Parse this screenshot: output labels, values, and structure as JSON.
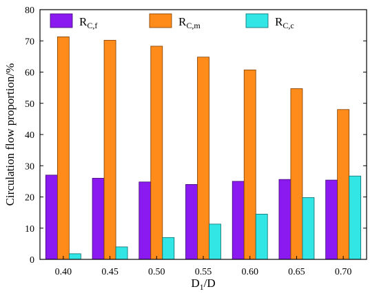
{
  "chart_data": {
    "type": "bar",
    "categories": [
      "0.40",
      "0.45",
      "0.50",
      "0.55",
      "0.60",
      "0.65",
      "0.70"
    ],
    "xlabel": {
      "main": "D",
      "sub": "1",
      "rest": "/D"
    },
    "ylabel": "Circulation flow proportion/%",
    "ylim": [
      0,
      80
    ],
    "yticks": [
      0,
      10,
      20,
      30,
      40,
      50,
      60,
      70,
      80
    ],
    "grid": false,
    "legend_position": "top",
    "series": [
      {
        "name": "R",
        "sub": "C,f",
        "color": "#8B1AF0",
        "edge": "#3a0a6e",
        "values": [
          27.0,
          26.0,
          24.8,
          24.0,
          25.0,
          25.6,
          25.4
        ]
      },
      {
        "name": "R",
        "sub": "C,m",
        "color": "#FF8C1A",
        "edge": "#7a3a00",
        "values": [
          71.3,
          70.2,
          68.3,
          64.8,
          60.7,
          54.7,
          48.0
        ]
      },
      {
        "name": "R",
        "sub": "C,c",
        "color": "#33E6E6",
        "edge": "#0a6a6a",
        "values": [
          1.8,
          4.0,
          7.0,
          11.3,
          14.5,
          19.8,
          26.7
        ]
      }
    ]
  }
}
